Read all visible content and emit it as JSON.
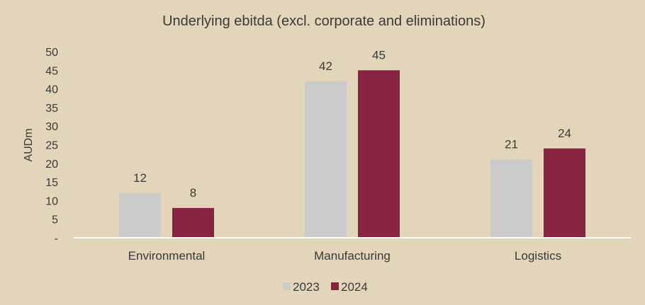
{
  "chart_data": {
    "type": "bar",
    "title": "Underlying ebitda (excl. corporate and eliminations)",
    "xlabel": "",
    "ylabel": "AUDm",
    "categories": [
      "Environmental",
      "Manufacturing",
      "Logistics"
    ],
    "series": [
      {
        "name": "2023",
        "values": [
          12,
          42,
          21
        ],
        "labels": [
          "12",
          "42",
          "21"
        ],
        "color": "#cbcbcb"
      },
      {
        "name": "2024",
        "values": [
          8,
          45,
          24
        ],
        "labels": [
          "8",
          "45",
          "24"
        ],
        "color": "#862442"
      }
    ],
    "ylim": [
      0,
      50
    ],
    "yticks": [
      0,
      5,
      10,
      15,
      20,
      25,
      30,
      35,
      40,
      45,
      50
    ],
    "ytick_labels": [
      "-",
      "5",
      "10",
      "15",
      "20",
      "25",
      "30",
      "35",
      "40",
      "45",
      "50"
    ],
    "grid": false,
    "legend_position": "bottom"
  },
  "colors": {
    "background": "#e2d5ba",
    "axis_line": "#ffffff",
    "text": "#3a3a3a"
  }
}
